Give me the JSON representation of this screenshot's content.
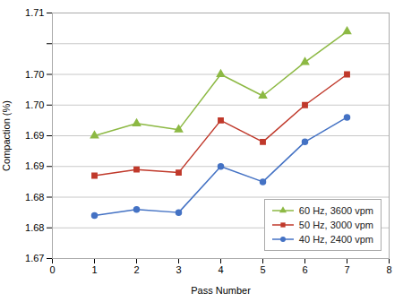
{
  "chart_data": {
    "type": "line",
    "xlabel": "Pass Number",
    "ylabel": "Compaction (%)",
    "x": [
      1,
      2,
      3,
      4,
      5,
      6,
      7
    ],
    "series": [
      {
        "name": "60 Hz, 3600 vpm",
        "color": "#8DB944",
        "marker": "triangle",
        "values": [
          1.69,
          1.692,
          1.691,
          1.7,
          1.6965,
          1.702,
          1.707
        ]
      },
      {
        "name": "50 Hz, 3000 vpm",
        "color": "#C0392B",
        "marker": "square",
        "values": [
          1.6835,
          1.6845,
          1.684,
          1.6925,
          1.689,
          1.695,
          1.7
        ]
      },
      {
        "name": "40 Hz, 2400 vpm",
        "color": "#4472C4",
        "marker": "circle",
        "values": [
          1.677,
          1.678,
          1.6775,
          1.685,
          1.6825,
          1.689,
          1.693
        ]
      }
    ],
    "xlim": [
      0,
      8
    ],
    "ylim": [
      1.67,
      1.71
    ],
    "xticks": [
      0,
      1,
      2,
      3,
      4,
      5,
      6,
      7,
      8
    ],
    "yticks": [
      1.67,
      {
        "value": 1.675,
        "label": "1.68"
      },
      1.68,
      {
        "value": 1.685,
        "label": "1.69"
      },
      1.69,
      {
        "value": 1.695,
        "label": "1.70"
      },
      {
        "value": 1.7,
        "label": "1.70"
      },
      {
        "value": 1.705,
        "label": null
      },
      1.71
    ],
    "grid": "y",
    "legend": "lower right"
  }
}
